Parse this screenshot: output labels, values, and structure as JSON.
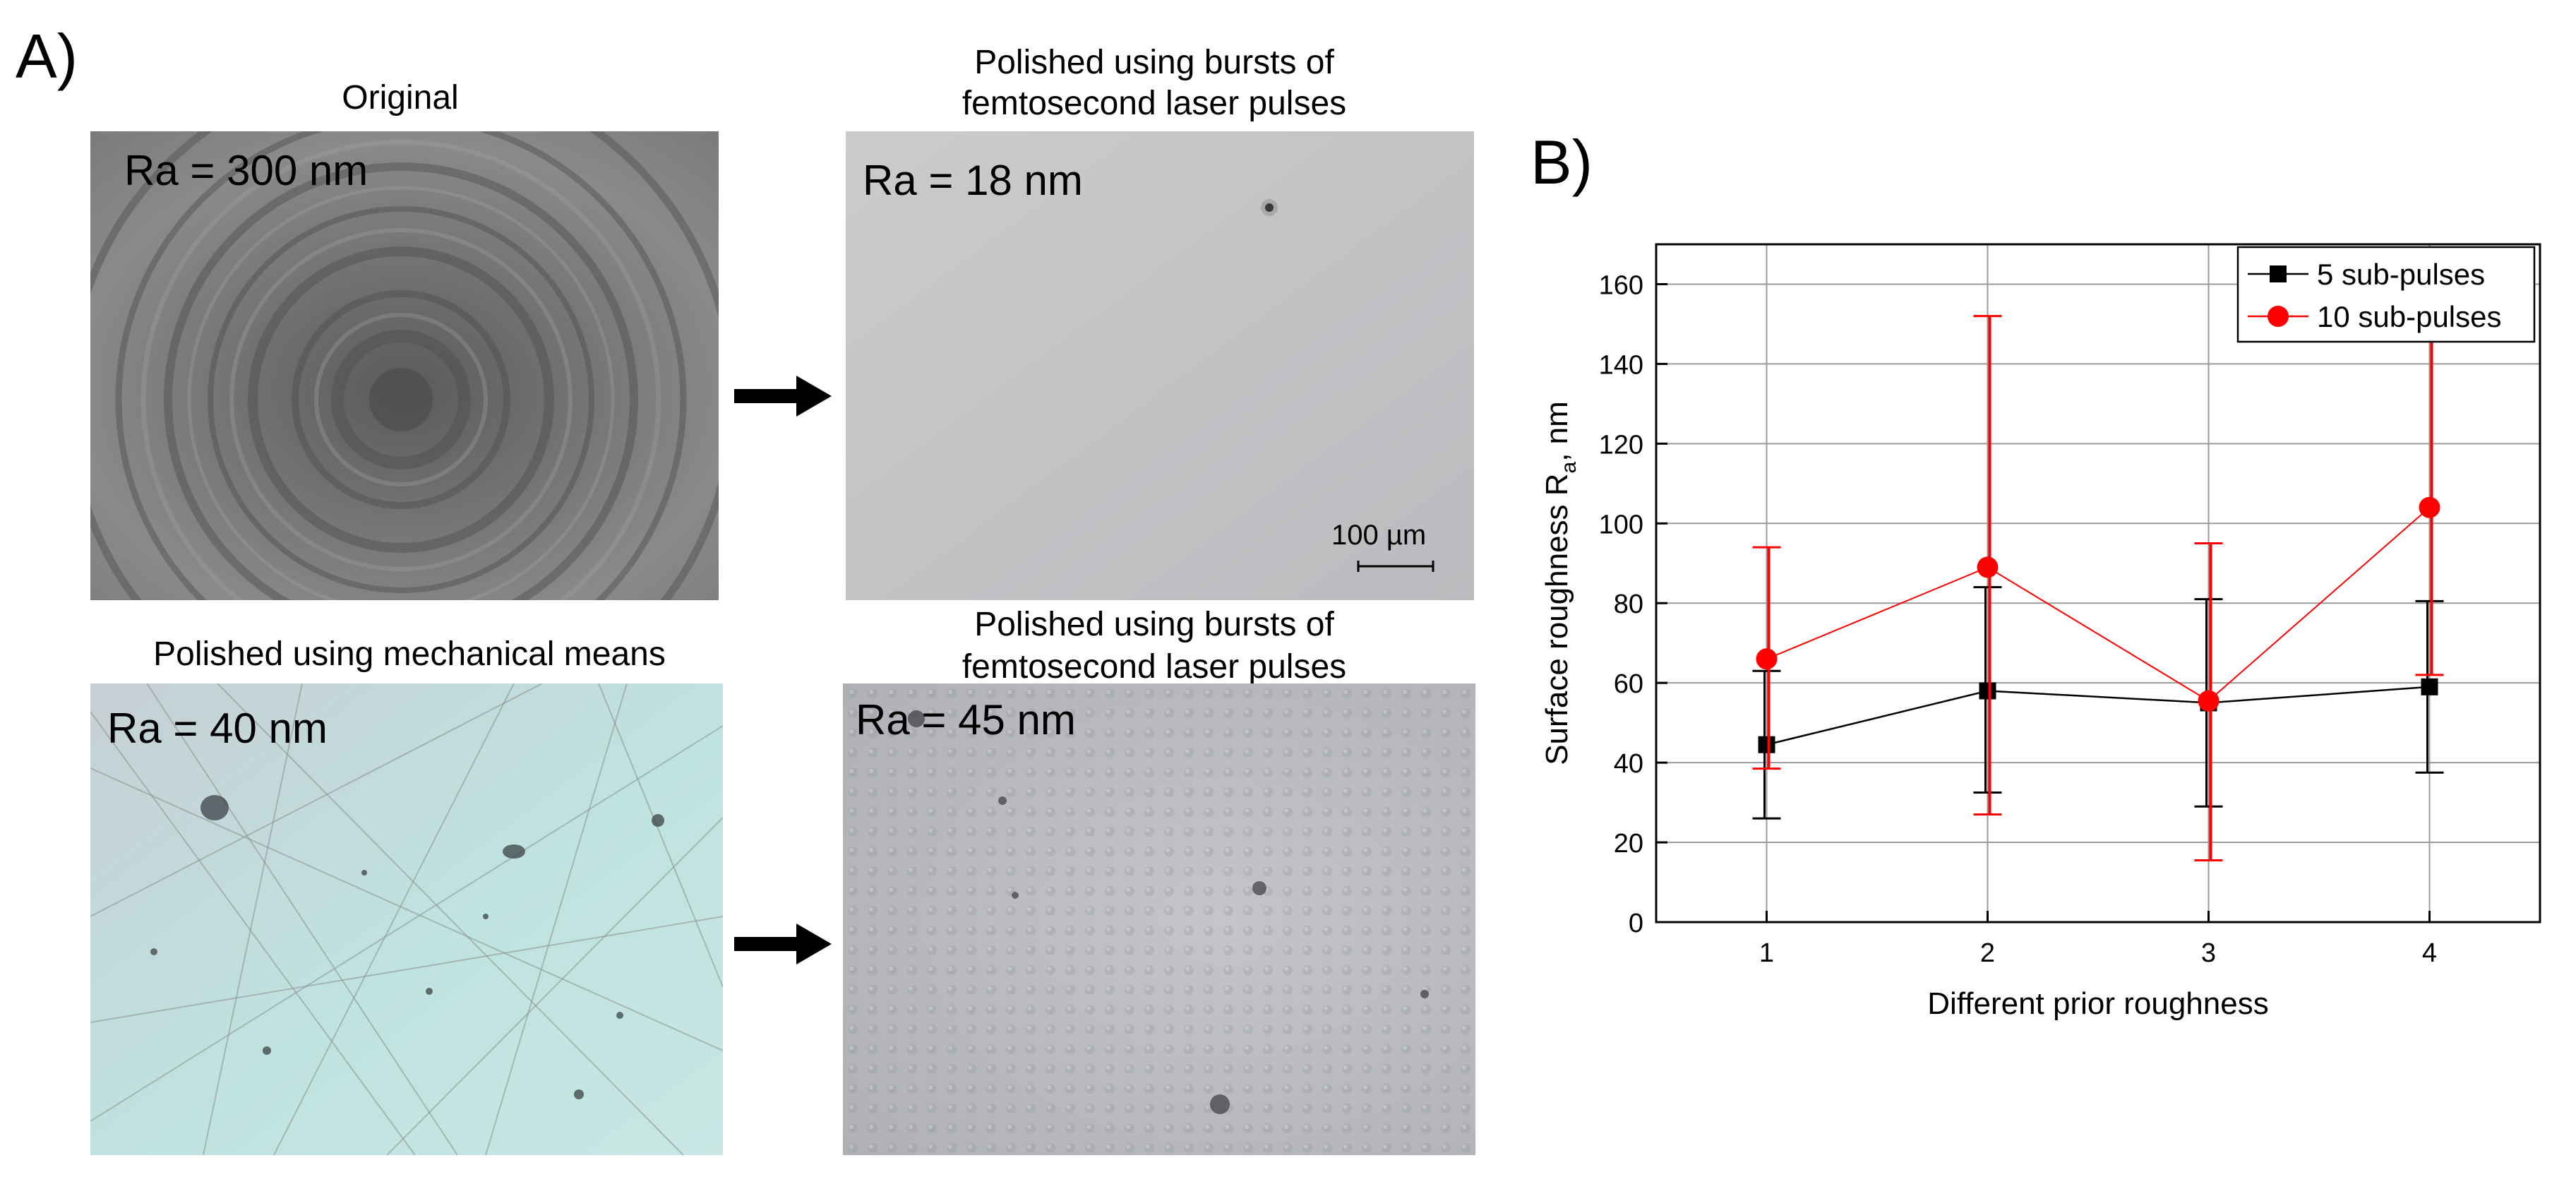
{
  "panel_a": {
    "letter": "A)",
    "images": [
      {
        "caption": "Original",
        "ra": "Ra = 300 nm"
      },
      {
        "caption_line1": "Polished using bursts of",
        "caption_line2": "femtosecond laser pulses",
        "ra": "Ra = 18 nm",
        "scale_bar": "100 µm"
      },
      {
        "caption": "Polished using mechanical means",
        "ra": "Ra = 40 nm"
      },
      {
        "caption_line1": "Polished using bursts of",
        "caption_line2": "femtosecond laser pulses",
        "ra": "Ra = 45 nm"
      }
    ]
  },
  "panel_b": {
    "letter": "B)"
  },
  "colors": {
    "series_black": "#000000",
    "series_red": "#ff0000",
    "grid": "#9a9a9a"
  },
  "chart_data": {
    "type": "line",
    "xlabel": "Different prior roughness",
    "ylabel_main": "Surface roughness R",
    "ylabel_sub": "a",
    "ylabel_unit": ", nm",
    "x": [
      1,
      2,
      3,
      4
    ],
    "xlim": [
      0.5,
      4.5
    ],
    "ylim": [
      0,
      170
    ],
    "yticks": [
      0,
      20,
      40,
      60,
      80,
      100,
      120,
      140,
      160
    ],
    "grid": true,
    "legend_position": "top-right",
    "series": [
      {
        "name": "5 sub-pulses",
        "color": "#000000",
        "marker": "square",
        "values": [
          44.5,
          58,
          55,
          59
        ],
        "err_low": [
          26,
          32.5,
          29,
          37.5
        ],
        "err_high": [
          63,
          84,
          81,
          80.5
        ]
      },
      {
        "name": "10 sub-pulses",
        "color": "#ff0000",
        "marker": "circle",
        "values": [
          66,
          89,
          55.5,
          104
        ],
        "err_low": [
          38.5,
          27,
          15.5,
          62
        ],
        "err_high": [
          94,
          152,
          95,
          146
        ]
      }
    ]
  }
}
